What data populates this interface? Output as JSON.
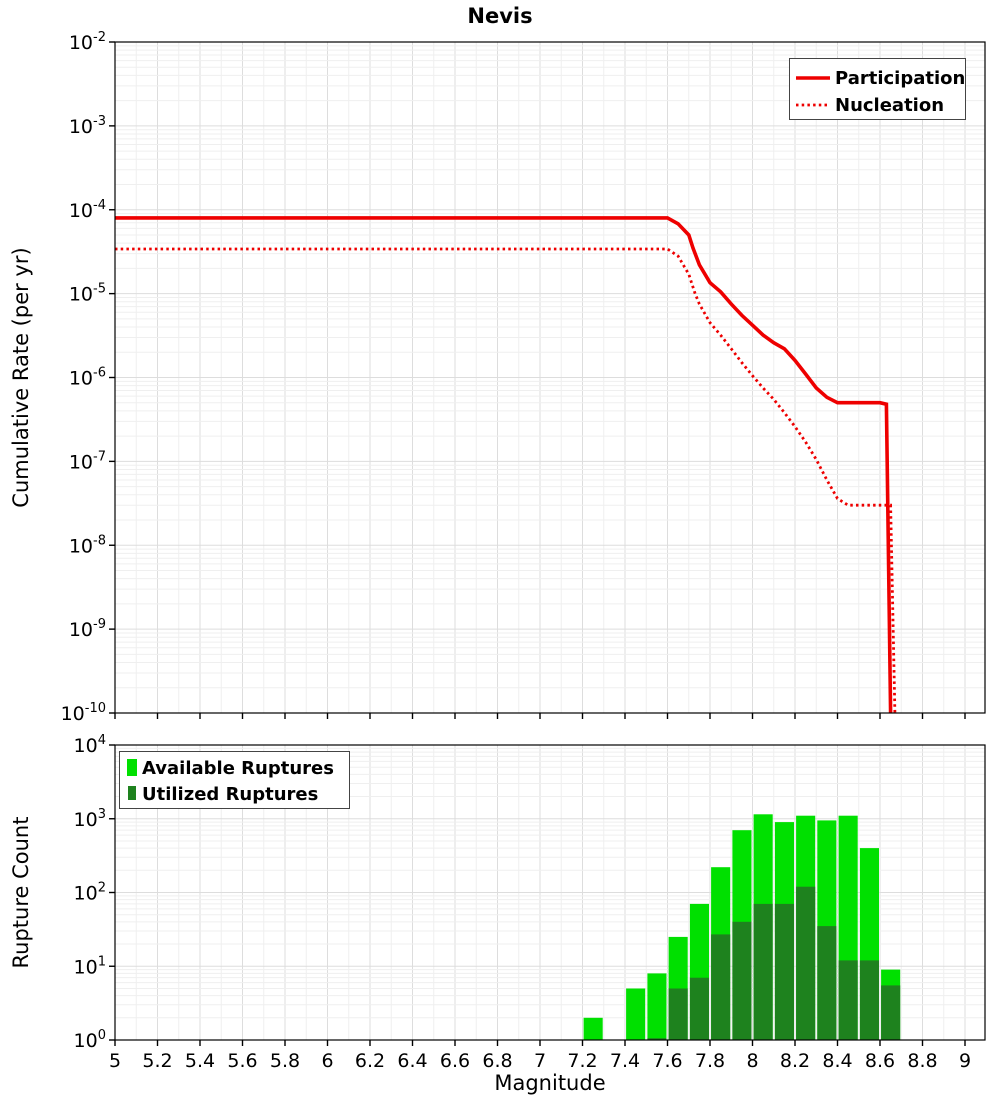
{
  "top_chart": {
    "title": "Nevis",
    "ylabel": "Cumulative Rate (per yr)",
    "legend": {
      "participation": "Participation",
      "nucleation": "Nucleation"
    }
  },
  "bottom_chart": {
    "ylabel": "Rupture Count",
    "xlabel": "Magnitude",
    "legend": {
      "available": "Available Ruptures",
      "utilized": "Utilized Ruptures"
    }
  },
  "colors": {
    "participation": "#ee0000",
    "nucleation": "#ee0000",
    "available": "#00e000",
    "utilized": "#1e821e",
    "grid_major": "#dddddd",
    "grid_minor": "#efefef",
    "plot_background": "#ffffff",
    "plot_border": "#000000",
    "tick": "#000000"
  },
  "chart_data": [
    {
      "type": "line",
      "title": "Nevis",
      "xlabel": "Magnitude",
      "ylabel": "Cumulative Rate (per yr)",
      "x_range": [
        5,
        9
      ],
      "y_range": [
        1e-10,
        0.01
      ],
      "y_scale": "log",
      "grid": true,
      "legend_position": "top-right",
      "y_tick_exponents": [
        -2,
        -3,
        -4,
        -5,
        -6,
        -7,
        -8,
        -9,
        -10
      ],
      "series": [
        {
          "name": "Participation",
          "style": "solid",
          "color": "#ee0000",
          "points": [
            [
              5.0,
              8e-05
            ],
            [
              7.6,
              8e-05
            ],
            [
              7.65,
              6.8e-05
            ],
            [
              7.7,
              5e-05
            ],
            [
              7.72,
              3.5e-05
            ],
            [
              7.75,
              2.2e-05
            ],
            [
              7.8,
              1.35e-05
            ],
            [
              7.85,
              1.05e-05
            ],
            [
              7.9,
              7.5e-06
            ],
            [
              7.95,
              5.5e-06
            ],
            [
              8.0,
              4.2e-06
            ],
            [
              8.05,
              3.2e-06
            ],
            [
              8.1,
              2.6e-06
            ],
            [
              8.15,
              2.2e-06
            ],
            [
              8.2,
              1.6e-06
            ],
            [
              8.25,
              1.1e-06
            ],
            [
              8.3,
              7.5e-07
            ],
            [
              8.35,
              5.8e-07
            ],
            [
              8.4,
              5e-07
            ],
            [
              8.6,
              5e-07
            ],
            [
              8.63,
              4.8e-07
            ],
            [
              8.65,
              1e-10
            ]
          ]
        },
        {
          "name": "Nucleation",
          "style": "dotted",
          "color": "#ee0000",
          "points": [
            [
              5.0,
              3.4e-05
            ],
            [
              7.6,
              3.4e-05
            ],
            [
              7.65,
              2.8e-05
            ],
            [
              7.7,
              1.7e-05
            ],
            [
              7.73,
              1e-05
            ],
            [
              7.75,
              7.5e-06
            ],
            [
              7.8,
              4.5e-06
            ],
            [
              7.85,
              3.2e-06
            ],
            [
              7.9,
              2.2e-06
            ],
            [
              7.95,
              1.5e-06
            ],
            [
              8.0,
              1.05e-06
            ],
            [
              8.05,
              7.5e-07
            ],
            [
              8.1,
              5.5e-07
            ],
            [
              8.15,
              3.8e-07
            ],
            [
              8.2,
              2.6e-07
            ],
            [
              8.25,
              1.7e-07
            ],
            [
              8.3,
              1.05e-07
            ],
            [
              8.35,
              6e-08
            ],
            [
              8.4,
              3.6e-08
            ],
            [
              8.45,
              3e-08
            ],
            [
              8.65,
              3e-08
            ],
            [
              8.67,
              1e-10
            ]
          ]
        }
      ]
    },
    {
      "type": "bar",
      "xlabel": "Magnitude",
      "ylabel": "Rupture Count",
      "x_range": [
        5,
        9
      ],
      "y_range": [
        1,
        10000
      ],
      "y_scale": "log",
      "grid": true,
      "bar_width": 0.1,
      "legend_position": "top-left",
      "y_tick_exponents": [
        4,
        3,
        2,
        1,
        0
      ],
      "x_tick_labels": [
        "5",
        "5.2",
        "5.4",
        "5.6",
        "5.8",
        "6",
        "6.2",
        "6.4",
        "6.6",
        "6.8",
        "7",
        "7.2",
        "7.4",
        "7.6",
        "7.8",
        "8",
        "8.2",
        "8.4",
        "8.6",
        "8.8",
        "9"
      ],
      "series": [
        {
          "name": "Available Ruptures",
          "color": "#00e000",
          "bars": [
            [
              7.25,
              2
            ],
            [
              7.45,
              5
            ],
            [
              7.55,
              8
            ],
            [
              7.65,
              25
            ],
            [
              7.75,
              70
            ],
            [
              7.85,
              220
            ],
            [
              7.95,
              700
            ],
            [
              8.05,
              1150
            ],
            [
              8.15,
              900
            ],
            [
              8.25,
              1100
            ],
            [
              8.35,
              950
            ],
            [
              8.45,
              1100
            ],
            [
              8.55,
              400
            ],
            [
              8.65,
              9
            ]
          ]
        },
        {
          "name": "Utilized Ruptures",
          "color": "#1e821e",
          "bars": [
            [
              7.55,
              1
            ],
            [
              7.65,
              5
            ],
            [
              7.75,
              7
            ],
            [
              7.85,
              27
            ],
            [
              7.95,
              40
            ],
            [
              8.05,
              70
            ],
            [
              8.15,
              70
            ],
            [
              8.25,
              120
            ],
            [
              8.35,
              35
            ],
            [
              8.45,
              12
            ],
            [
              8.55,
              12
            ],
            [
              8.65,
              5.5
            ]
          ]
        }
      ]
    }
  ]
}
